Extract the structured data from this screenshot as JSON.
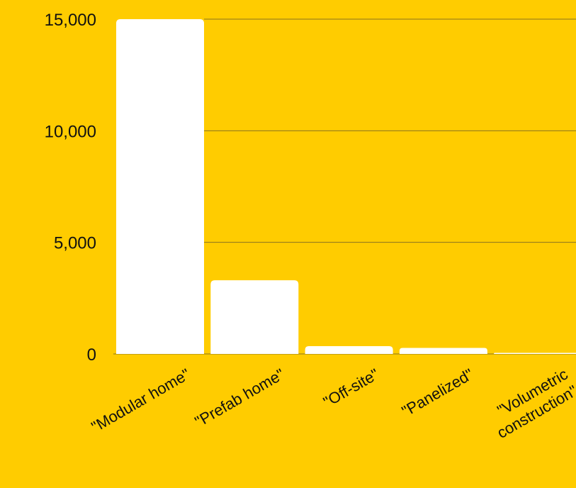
{
  "colors": {
    "background": "#FFCC00",
    "bar": "#FFFFFF",
    "grid": "#8A7320",
    "text": "#111111"
  },
  "chart_data": {
    "type": "bar",
    "title": "",
    "xlabel": "",
    "ylabel": "",
    "ylim": [
      0,
      15000
    ],
    "yticks": [
      0,
      5000,
      10000,
      15000
    ],
    "ytick_labels": [
      "0",
      "5,000",
      "10,000",
      "15,000"
    ],
    "grid": true,
    "categories": [
      [
        "\"Modular home\""
      ],
      [
        "\"Prefab home\""
      ],
      [
        "\"Off-site\""
      ],
      [
        "\"Panelized\""
      ],
      [
        "\"Volumetric",
        "construction\""
      ]
    ],
    "values": [
      15000,
      3300,
      350,
      270,
      30
    ]
  }
}
